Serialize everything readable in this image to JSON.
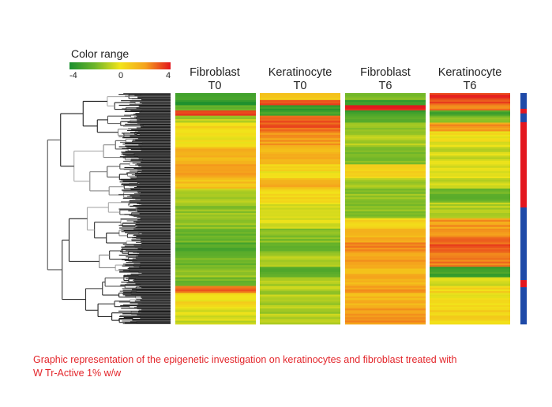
{
  "chart_data": {
    "type": "heatmap",
    "title": "",
    "legend": {
      "title": "Color range",
      "min": -4,
      "mid": 0,
      "max": 4,
      "ticks": [
        "-4",
        "0",
        "4"
      ],
      "colors": [
        "#1a8f2e",
        "#6db52a",
        "#f2e41a",
        "#f5a21c",
        "#e3171e"
      ]
    },
    "columns": [
      {
        "name": "Fibroblast",
        "time": "T0"
      },
      {
        "name": "Keratinocyte",
        "time": "T0"
      },
      {
        "name": "Fibroblast",
        "time": "T6"
      },
      {
        "name": "Keratinocyte",
        "time": "T6"
      }
    ],
    "row_blocks": [
      {
        "rows": 4,
        "values": [
          -3.0,
          1.0,
          -1.5,
          3.5
        ]
      },
      {
        "rows": 3,
        "values": [
          -3.5,
          3.5,
          -3.5,
          3.0
        ]
      },
      {
        "rows": 3,
        "values": [
          -2.0,
          -3.5,
          4.0,
          2.5
        ]
      },
      {
        "rows": 3,
        "values": [
          3.5,
          -3.0,
          -3.0,
          -3.0
        ]
      },
      {
        "rows": 4,
        "values": [
          -1.0,
          3.0,
          -2.5,
          -1.5
        ]
      },
      {
        "rows": 5,
        "values": [
          0.3,
          3.0,
          -1.5,
          2.0
        ]
      },
      {
        "rows": 9,
        "values": [
          0.2,
          2.0,
          -1.0,
          0.0
        ]
      },
      {
        "rows": 10,
        "values": [
          1.5,
          1.5,
          -1.5,
          -0.5
        ]
      },
      {
        "rows": 8,
        "values": [
          2.0,
          0.2,
          0.3,
          -0.5
        ]
      },
      {
        "rows": 6,
        "values": [
          1.0,
          1.5,
          -1.0,
          -0.5
        ]
      },
      {
        "rows": 8,
        "values": [
          -1.0,
          0.5,
          -1.5,
          -2.0
        ]
      },
      {
        "rows": 9,
        "values": [
          -1.5,
          -0.5,
          -1.5,
          -1.0
        ]
      },
      {
        "rows": 6,
        "values": [
          -1.5,
          -0.5,
          0.5,
          2.0
        ]
      },
      {
        "rows": 8,
        "values": [
          -2.0,
          -1.5,
          1.5,
          2.5
        ]
      },
      {
        "rows": 6,
        "values": [
          -2.5,
          -2.0,
          2.5,
          3.0
        ]
      },
      {
        "rows": 8,
        "values": [
          -2.0,
          -1.0,
          2.0,
          2.5
        ]
      },
      {
        "rows": 6,
        "values": [
          -1.5,
          -2.5,
          1.5,
          -3.0
        ]
      },
      {
        "rows": 5,
        "values": [
          -2.0,
          -1.0,
          1.5,
          -0.5
        ]
      },
      {
        "rows": 4,
        "values": [
          3.0,
          -1.0,
          2.0,
          0.5
        ]
      },
      {
        "rows": 8,
        "values": [
          0.3,
          -1.0,
          1.5,
          0.2
        ]
      },
      {
        "rows": 10,
        "values": [
          -0.5,
          -1.0,
          2.0,
          0.5
        ]
      }
    ],
    "row_groups": [
      {
        "group": "blue",
        "fraction": 0.068
      },
      {
        "group": "red",
        "fraction": 0.02
      },
      {
        "group": "blue",
        "fraction": 0.038
      },
      {
        "group": "red",
        "fraction": 0.369
      },
      {
        "group": "blue",
        "fraction": 0.314
      },
      {
        "group": "red",
        "fraction": 0.031
      },
      {
        "group": "blue",
        "fraction": 0.16
      }
    ],
    "group_colors": {
      "blue": "#1f4aa8",
      "red": "#e3171e"
    },
    "dendrogram": "hierarchical clustering of rows (left)"
  },
  "caption": {
    "line1": "Graphic representation of the epigenetic investigation on keratinocytes and fibroblast treated with",
    "line2": "W Tr-Active 1% w/w"
  }
}
